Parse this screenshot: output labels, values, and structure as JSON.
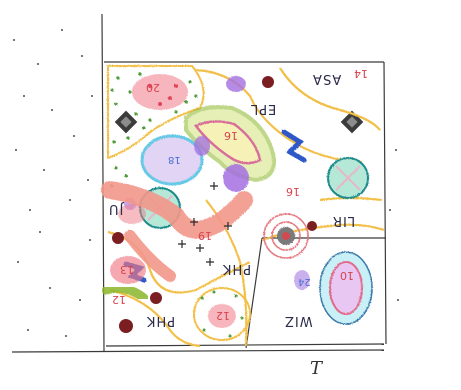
{
  "drawing": {
    "outside_label": "T",
    "region_numbers": {
      "n20": "20",
      "n16_upper": "16",
      "n14": "14",
      "n16_mid": "16",
      "n18": "18",
      "n19": "19",
      "n24": "24",
      "n12_bottom": "12",
      "n12_left": "12",
      "n13": "13",
      "n10": "10"
    },
    "region_words": {
      "asa": "ASA",
      "epl": "EPL",
      "lir": "LIR",
      "wiz": "WIZ",
      "phk_mid": "PHK",
      "phk_bottom": "PHK",
      "misc": "JU"
    },
    "colors": {
      "frame": "#3a3a3a",
      "yellow_border": "#f2c04a",
      "green_dot": "#4f9c3a",
      "pink": "#f07a86",
      "salmon": "#f2968a",
      "purple": "#a46ee0",
      "blue": "#2f58c8",
      "cyan": "#67c9e6",
      "lime": "#b9d23a",
      "dark_red": "#7a1e22",
      "teal": "#1f8a8a"
    }
  }
}
